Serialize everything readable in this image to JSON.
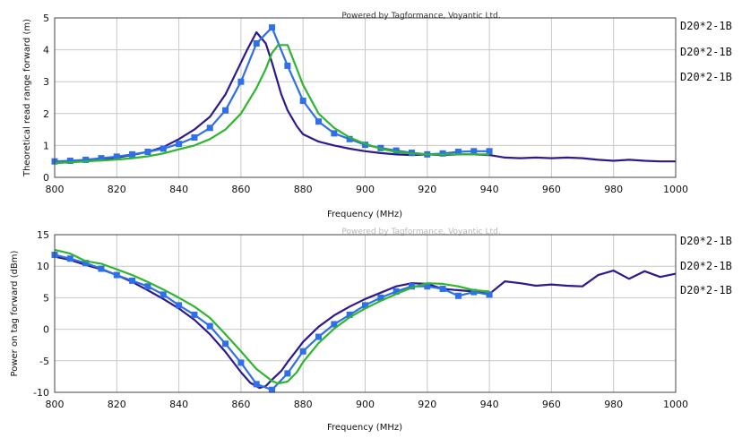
{
  "chart_data": [
    {
      "type": "line",
      "credit": "Powered by Tagformance, Voyantic Ltd.",
      "xlabel": "Frequency (MHz)",
      "ylabel": "Theoretical read range forward (m)",
      "xlim": [
        800,
        1000
      ],
      "ylim": [
        0,
        5
      ],
      "xticks": [
        "800",
        "820",
        "840",
        "860",
        "880",
        "900",
        "920",
        "940",
        "960",
        "980",
        "1000"
      ],
      "yticks": [
        "0",
        "1",
        "2",
        "3",
        "4",
        "5"
      ],
      "legend": [
        "D20*2-1B",
        "D20*2-1B",
        "D20*2-1B"
      ],
      "series": [
        {
          "color": "#2e1a8c",
          "marker": "none",
          "x": [
            800,
            805,
            810,
            815,
            820,
            825,
            830,
            835,
            840,
            845,
            850,
            855,
            860,
            862,
            865,
            868,
            870,
            873,
            875,
            878,
            880,
            885,
            890,
            895,
            900,
            905,
            910,
            915,
            920,
            925,
            930,
            935,
            940,
            945,
            950,
            955,
            960,
            965,
            970,
            975,
            980,
            985,
            990,
            995,
            1000
          ],
          "y": [
            0.45,
            0.48,
            0.52,
            0.56,
            0.62,
            0.7,
            0.8,
            0.95,
            1.2,
            1.5,
            1.9,
            2.6,
            3.6,
            4.0,
            4.55,
            4.2,
            3.6,
            2.6,
            2.1,
            1.6,
            1.35,
            1.12,
            1.0,
            0.9,
            0.82,
            0.76,
            0.72,
            0.7,
            0.72,
            0.7,
            0.72,
            0.72,
            0.7,
            0.62,
            0.6,
            0.62,
            0.6,
            0.62,
            0.6,
            0.55,
            0.52,
            0.55,
            0.52,
            0.5,
            0.5
          ]
        },
        {
          "color": "#2f6fe8",
          "marker": "square",
          "x": [
            800,
            805,
            810,
            815,
            820,
            825,
            830,
            835,
            840,
            845,
            850,
            855,
            860,
            865,
            870,
            875,
            880,
            885,
            890,
            895,
            900,
            905,
            910,
            915,
            920,
            925,
            930,
            935,
            940
          ],
          "y": [
            0.5,
            0.52,
            0.55,
            0.6,
            0.65,
            0.72,
            0.8,
            0.9,
            1.05,
            1.25,
            1.55,
            2.1,
            3.0,
            4.2,
            4.7,
            3.5,
            2.4,
            1.75,
            1.38,
            1.2,
            1.02,
            0.92,
            0.84,
            0.77,
            0.72,
            0.75,
            0.8,
            0.82,
            0.82
          ]
        },
        {
          "color": "#2fb52f",
          "marker": "none",
          "x": [
            800,
            805,
            810,
            815,
            820,
            825,
            830,
            835,
            840,
            845,
            850,
            855,
            860,
            865,
            868,
            870,
            872,
            875,
            878,
            880,
            885,
            890,
            895,
            900,
            905,
            910,
            915,
            920,
            925,
            930,
            935,
            940
          ],
          "y": [
            0.45,
            0.47,
            0.5,
            0.53,
            0.56,
            0.6,
            0.66,
            0.75,
            0.88,
            1.0,
            1.2,
            1.5,
            2.0,
            2.8,
            3.4,
            3.9,
            4.15,
            4.15,
            3.4,
            2.9,
            2.0,
            1.55,
            1.25,
            1.05,
            0.9,
            0.8,
            0.75,
            0.72,
            0.72,
            0.72,
            0.72,
            0.72
          ]
        }
      ]
    },
    {
      "type": "line",
      "credit": "Powered by Tagformance, Voyantic Ltd.",
      "xlabel": "Frequency (MHz)",
      "ylabel": "Power on tag forward (dBm)",
      "xlim": [
        800,
        1000
      ],
      "ylim": [
        -10,
        15
      ],
      "xticks": [
        "800",
        "820",
        "840",
        "860",
        "880",
        "900",
        "920",
        "940",
        "960",
        "980",
        "1000"
      ],
      "yticks": [
        "-10",
        "-5",
        "0",
        "5",
        "10",
        "15"
      ],
      "legend": [
        "D20*2-1B",
        "D20*2-1B",
        "D20*2-1B"
      ],
      "series": [
        {
          "color": "#2e1a8c",
          "marker": "none",
          "x": [
            800,
            805,
            810,
            815,
            820,
            825,
            830,
            835,
            840,
            845,
            850,
            855,
            860,
            863,
            866,
            868,
            870,
            873,
            875,
            878,
            880,
            885,
            890,
            895,
            900,
            905,
            910,
            915,
            920,
            925,
            930,
            935,
            940,
            945,
            950,
            955,
            960,
            965,
            970,
            975,
            980,
            985,
            990,
            995,
            1000
          ],
          "y": [
            11.5,
            11.0,
            10.2,
            9.5,
            8.6,
            7.5,
            6.2,
            4.8,
            3.3,
            1.5,
            -0.8,
            -3.6,
            -6.8,
            -8.5,
            -9.3,
            -9.0,
            -8.0,
            -6.6,
            -5.2,
            -3.3,
            -2.0,
            0.4,
            2.2,
            3.6,
            4.8,
            5.8,
            6.8,
            7.3,
            7.2,
            6.4,
            6.2,
            6.0,
            5.6,
            7.6,
            7.3,
            6.9,
            7.1,
            6.9,
            6.8,
            8.6,
            9.3,
            8.0,
            9.2,
            8.3,
            8.8
          ]
        },
        {
          "color": "#2f6fe8",
          "marker": "square",
          "x": [
            800,
            805,
            810,
            815,
            820,
            825,
            830,
            835,
            840,
            845,
            850,
            855,
            860,
            865,
            870,
            875,
            880,
            885,
            890,
            895,
            900,
            905,
            910,
            915,
            920,
            925,
            930,
            935,
            940
          ],
          "y": [
            11.8,
            11.2,
            10.5,
            9.6,
            8.6,
            7.7,
            6.8,
            5.5,
            3.8,
            2.3,
            0.5,
            -2.3,
            -5.3,
            -8.7,
            -9.6,
            -7.0,
            -3.5,
            -1.2,
            0.8,
            2.3,
            3.8,
            5.0,
            6.0,
            6.8,
            6.8,
            6.4,
            5.3,
            5.9,
            5.5
          ]
        },
        {
          "color": "#2fb52f",
          "marker": "none",
          "x": [
            800,
            805,
            810,
            815,
            820,
            825,
            830,
            835,
            840,
            845,
            850,
            855,
            860,
            865,
            870,
            872,
            875,
            878,
            880,
            885,
            890,
            895,
            900,
            905,
            910,
            915,
            920,
            925,
            930,
            935,
            940
          ],
          "y": [
            12.6,
            12.0,
            10.8,
            10.4,
            9.5,
            8.6,
            7.5,
            6.3,
            5.0,
            3.6,
            1.8,
            -0.8,
            -3.5,
            -6.3,
            -8.2,
            -8.6,
            -8.3,
            -6.8,
            -5.2,
            -2.2,
            0.1,
            1.9,
            3.3,
            4.5,
            5.6,
            6.6,
            7.3,
            7.2,
            6.8,
            6.2,
            6.0
          ]
        }
      ]
    }
  ]
}
